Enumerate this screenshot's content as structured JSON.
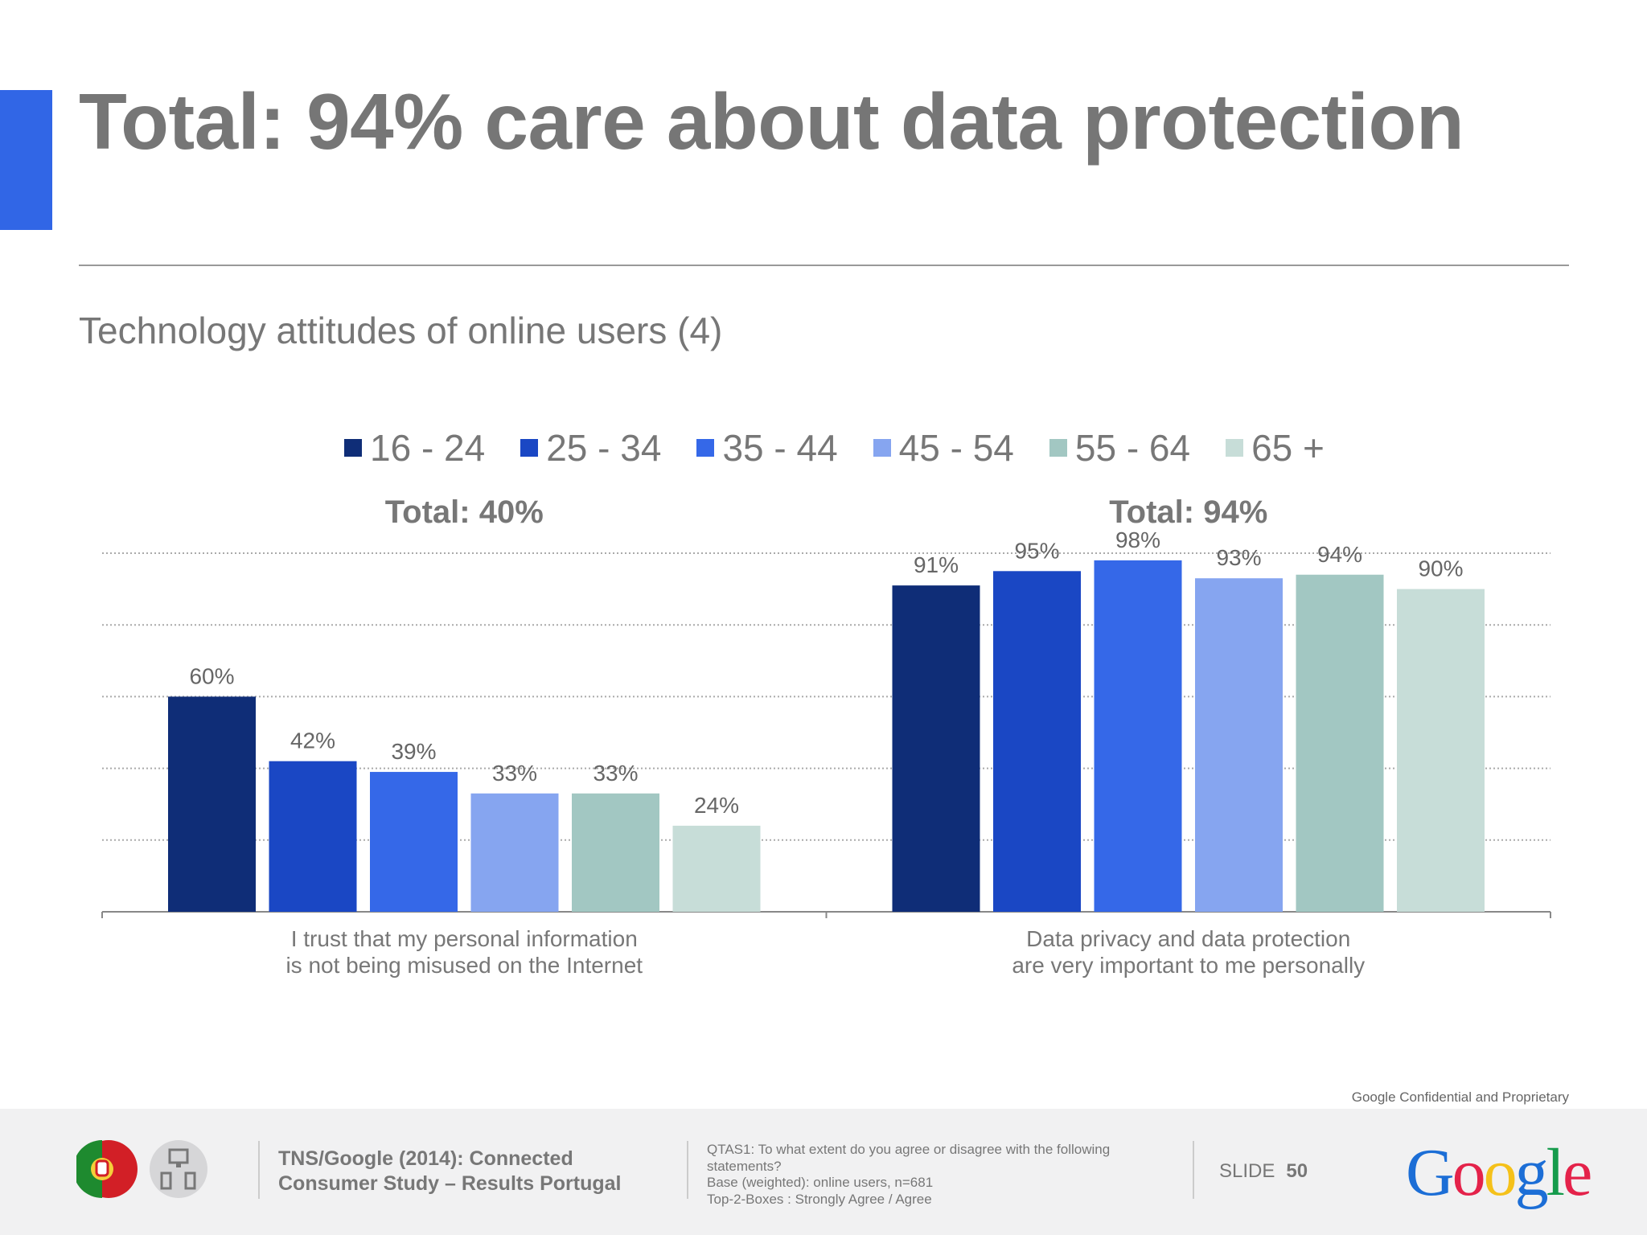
{
  "title": "Total: 94% care about data protection",
  "subtitle": "Technology attitudes of online users (4)",
  "chart_data": {
    "type": "bar",
    "categories": [
      "I trust that my personal information\nis not being misused on the Internet",
      "Data privacy and data protection\nare very important to me personally"
    ],
    "category_lines": [
      [
        "I trust that my personal information",
        "is not being misused on the Internet"
      ],
      [
        "Data privacy and data protection",
        "are very important to me personally"
      ]
    ],
    "group_totals": [
      "Total: 40%",
      "Total: 94%"
    ],
    "series": [
      {
        "name": "16 - 24",
        "color": "#0f2d77",
        "values": [
          60,
          91
        ]
      },
      {
        "name": "25 - 34",
        "color": "#1a47c4",
        "values": [
          42,
          95
        ]
      },
      {
        "name": "35 - 44",
        "color": "#3568e8",
        "values": [
          39,
          98
        ]
      },
      {
        "name": "45 - 54",
        "color": "#86a5f0",
        "values": [
          33,
          93
        ]
      },
      {
        "name": "55 - 64",
        "color": "#a2c7c2",
        "values": [
          33,
          94
        ]
      },
      {
        "name": "65 +",
        "color": "#c7ddd8",
        "values": [
          24,
          90
        ]
      }
    ],
    "value_suffix": "%",
    "ylim": [
      0,
      100
    ],
    "grid": true,
    "legend": "top"
  },
  "footer": {
    "confidential": "Google Confidential and Proprietary",
    "source_line1": "TNS/Google (2014): Connected",
    "source_line2": "Consumer Study – Results Portugal",
    "notes": [
      "QTAS1: To what extent do you agree or disagree with the following statements?",
      "Base (weighted): online users, n=681",
      "Top-2-Boxes : Strongly Agree / Agree"
    ],
    "slide_label": "SLIDE",
    "slide_number": "50",
    "logo": "Google"
  }
}
